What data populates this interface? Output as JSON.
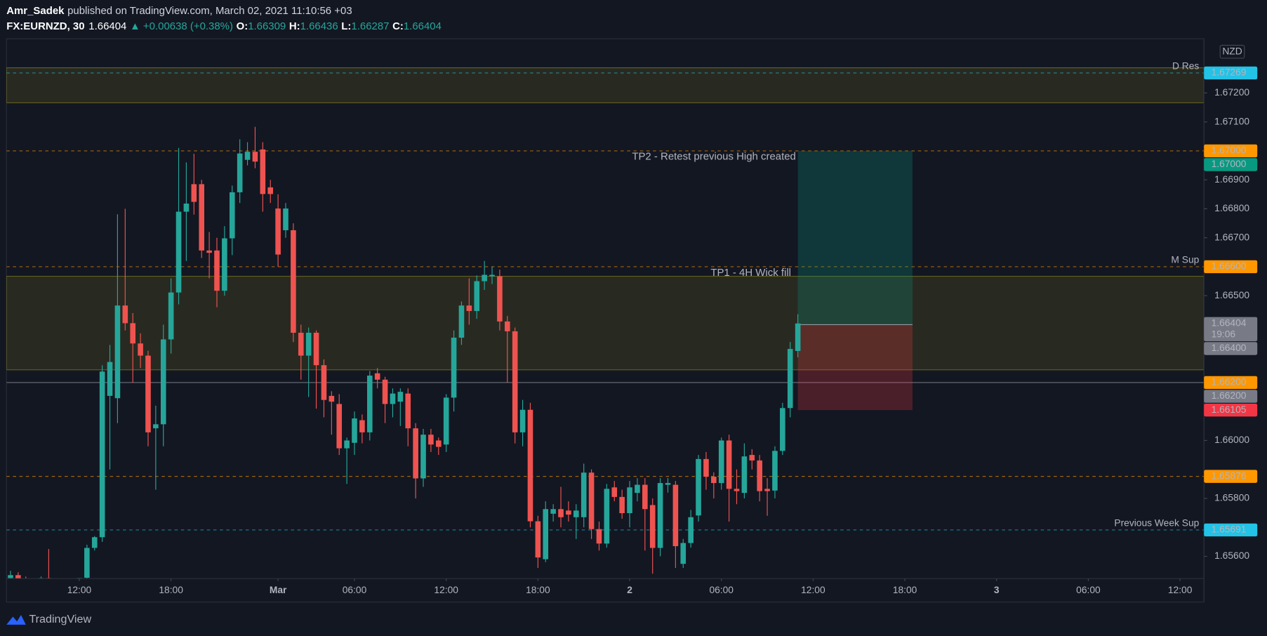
{
  "header": {
    "author": "Amr_Sadek",
    "published": "published on TradingView.com, March 02, 2021 11:10:56 +03",
    "symbol": "FX:EURNZD, 30",
    "change": "▲ +0.00638 (+0.38%)",
    "ohlc_labels": [
      "O:",
      "H:",
      "L:",
      "C:"
    ]
  },
  "chart_data": {
    "type": "candlestick",
    "currency": "NZD",
    "countdown": "19:06",
    "up_color": "#26a69a",
    "down_color": "#ef5350",
    "grid": false,
    "categories": [
      null,
      null,
      null,
      null,
      null,
      null,
      null,
      null,
      null,
      "12:00",
      null,
      null,
      null,
      null,
      null,
      null,
      null,
      null,
      null,
      null,
      null,
      "18:00",
      null,
      null,
      null,
      null,
      null,
      null,
      null,
      null,
      null,
      null,
      null,
      null,
      null,
      "Mar",
      null,
      null,
      null,
      null,
      null,
      null,
      null,
      null,
      null,
      "06:00",
      null,
      null,
      null,
      null,
      null,
      null,
      null,
      null,
      null,
      null,
      null,
      "12:00",
      null,
      null,
      null,
      null,
      null,
      null,
      null,
      null,
      null,
      null,
      null,
      "18:00",
      null,
      null,
      null,
      null,
      null,
      null,
      null,
      null,
      null,
      null,
      null,
      "2",
      null,
      null,
      null,
      null,
      null,
      null,
      null,
      null,
      null,
      null,
      null,
      "06:00",
      null,
      null,
      null,
      null,
      null,
      null,
      null,
      null,
      null,
      null,
      null,
      "12:00",
      null,
      null,
      null,
      null,
      null,
      null,
      null,
      null,
      null,
      null,
      null,
      "18:00",
      null,
      null,
      null,
      null,
      null,
      null,
      null,
      null,
      null,
      null,
      null,
      "3",
      null,
      null,
      null,
      null,
      null,
      null,
      null,
      null,
      null,
      null,
      null,
      "06:00",
      null,
      null,
      null,
      null,
      null,
      null,
      null,
      null,
      null,
      null,
      null,
      "12:00"
    ],
    "open": [
      1.65525,
      1.65535,
      1.6552,
      1.655,
      1.65505,
      1.65525,
      1.65515,
      1.6549,
      1.655,
      1.65495,
      1.65526,
      1.65629,
      1.65666,
      1.66154,
      1.66146,
      1.66466,
      1.66405,
      1.66335,
      1.66293,
      1.66042,
      1.66056,
      1.66349,
      1.66511,
      1.6679,
      1.66885,
      1.66885,
      1.66656,
      1.66656,
      1.66517,
      1.66698,
      1.66857,
      1.66969,
      1.66997,
      1.67005,
      1.66874,
      1.66801,
      1.66726,
      1.66726,
      1.66372,
      1.66293,
      1.66372,
      1.6626,
      1.66154,
      1.66126,
      1.65973,
      1.65992,
      1.6607,
      1.66028,
      1.66232,
      1.6621,
      1.66126,
      1.66134,
      1.66162,
      1.66042,
      1.65869,
      1.6602,
      1.66,
      1.65986,
      1.66148,
      1.66355,
      1.66466,
      1.66447,
      1.6655,
      1.66567,
      1.66567,
      1.66411,
      1.66377,
      1.66028,
      1.66106,
      1.65721,
      1.6559,
      1.65747,
      1.65763,
      1.65758,
      1.65735,
      1.65735,
      1.65889,
      1.65694,
      1.65644,
      1.65838,
      1.65805,
      1.65749,
      1.65819,
      1.65847,
      1.65777,
      1.65629,
      1.65847,
      1.65847,
      1.65574,
      1.65646,
      1.65741,
      1.65936,
      1.65875,
      1.65853,
      1.66,
      1.65833,
      1.65819,
      1.6595,
      1.65931,
      1.65833,
      1.65827,
      1.65964,
      1.66112,
      1.66309,
      null,
      null,
      null,
      null,
      null,
      null,
      null,
      null,
      null,
      null,
      null,
      null,
      null,
      null,
      null,
      null,
      null,
      null,
      null,
      null,
      null,
      null,
      null,
      null,
      null,
      null,
      null,
      null,
      null,
      null,
      null,
      null,
      null,
      null,
      null,
      null,
      null,
      null,
      null,
      null,
      null,
      null,
      null,
      null,
      null,
      null,
      null,
      null,
      null,
      null
    ],
    "high": [
      1.6555,
      1.65545,
      1.6553,
      1.65515,
      1.6553,
      1.65625,
      1.6552,
      1.6551,
      1.65515,
      1.6552,
      1.6564,
      1.6567,
      1.6626,
      1.6633,
      1.66781,
      1.668,
      1.6644,
      1.6637,
      1.6631,
      1.6612,
      1.664,
      1.6656,
      1.6701,
      1.6696,
      1.6699,
      1.669,
      1.6672,
      1.667,
      1.6674,
      1.6688,
      1.6704,
      1.6703,
      1.67083,
      1.6703,
      1.669,
      1.6685,
      1.6682,
      1.6675,
      1.664,
      1.6639,
      1.6638,
      1.6628,
      1.6617,
      1.6616,
      1.6601,
      1.661,
      1.6609,
      1.6624,
      1.6625,
      1.6622,
      1.6618,
      1.6618,
      1.6618,
      1.6606,
      1.6604,
      1.6604,
      1.6601,
      1.6616,
      1.6638,
      1.6648,
      1.6656,
      1.6657,
      1.6662,
      1.666,
      1.6659,
      1.6643,
      1.6639,
      1.6614,
      1.6613,
      1.6574,
      1.6579,
      1.6578,
      1.6584,
      1.6579,
      1.6578,
      1.6592,
      1.659,
      1.6572,
      1.6585,
      1.6586,
      1.6583,
      1.6586,
      1.6587,
      1.6587,
      1.658,
      1.6587,
      1.6587,
      1.6586,
      1.6566,
      1.6576,
      1.6595,
      1.6596,
      1.6589,
      1.6601,
      1.6602,
      1.659,
      1.6599,
      1.6597,
      1.6595,
      1.6587,
      1.6598,
      1.6613,
      1.6634,
      1.66436,
      null,
      null,
      null,
      null,
      null,
      null,
      null,
      null,
      null,
      null,
      null,
      null,
      null,
      null,
      null,
      null,
      null,
      null,
      null,
      null,
      null,
      null,
      null,
      null,
      null,
      null,
      null,
      null,
      null,
      null,
      null,
      null,
      null,
      null,
      null,
      null,
      null,
      null,
      null,
      null,
      null,
      null,
      null,
      null,
      null,
      null,
      null,
      null,
      null,
      null
    ],
    "low": [
      1.655,
      1.6551,
      1.6549,
      1.6548,
      1.65495,
      1.65505,
      1.6548,
      1.6547,
      1.65485,
      1.6548,
      1.6551,
      1.6562,
      1.6565,
      1.659,
      1.6606,
      1.6638,
      1.662,
      1.6625,
      1.6598,
      1.6583,
      1.6598,
      1.663,
      1.6647,
      1.6662,
      1.6678,
      1.6663,
      1.6656,
      1.6646,
      1.665,
      1.6664,
      1.6682,
      1.6695,
      1.6694,
      1.6679,
      1.6682,
      1.666,
      1.667,
      1.6634,
      1.6621,
      1.6615,
      1.6611,
      1.6608,
      1.6602,
      1.6595,
      1.6585,
      1.6595,
      1.6599,
      1.66,
      1.6618,
      1.6606,
      1.6608,
      1.6605,
      1.6598,
      1.658,
      1.6584,
      1.6596,
      1.6595,
      1.6596,
      1.661,
      1.6633,
      1.664,
      1.6642,
      1.6652,
      1.6654,
      1.6638,
      1.662,
      1.6599,
      1.6598,
      1.657,
      1.6556,
      1.6558,
      1.6572,
      1.657,
      1.6572,
      1.6566,
      1.657,
      1.6566,
      1.6562,
      1.6563,
      1.6579,
      1.6573,
      1.657,
      1.6579,
      1.6562,
      1.6554,
      1.656,
      1.6582,
      1.6556,
      1.6556,
      1.6563,
      1.6572,
      1.6583,
      1.658,
      1.6583,
      1.6572,
      1.6578,
      1.658,
      1.659,
      1.6579,
      1.6574,
      1.658,
      1.6595,
      1.6608,
      1.66287,
      null,
      null,
      null,
      null,
      null,
      null,
      null,
      null,
      null,
      null,
      null,
      null,
      null,
      null,
      null,
      null,
      null,
      null,
      null,
      null,
      null,
      null,
      null,
      null,
      null,
      null,
      null,
      null,
      null,
      null,
      null,
      null,
      null,
      null,
      null,
      null,
      null,
      null,
      null,
      null,
      null,
      null,
      null,
      null,
      null,
      null,
      null,
      null,
      null,
      null
    ],
    "close": [
      1.65535,
      1.6552,
      1.655,
      1.65505,
      1.65525,
      1.65515,
      1.6549,
      1.655,
      1.65495,
      1.65525,
      1.65629,
      1.65666,
      1.66238,
      1.66271,
      1.66466,
      1.66405,
      1.66335,
      1.66293,
      1.66028,
      1.66056,
      1.66349,
      1.66511,
      1.6679,
      1.66818,
      1.66824,
      1.66656,
      1.66648,
      1.66517,
      1.66698,
      1.66857,
      1.66991,
      1.66997,
      1.66963,
      1.66851,
      1.66851,
      1.66642,
      1.66801,
      1.66372,
      1.66293,
      1.66372,
      1.6626,
      1.6614,
      1.66134,
      1.65973,
      1.66,
      1.66076,
      1.66028,
      1.66224,
      1.6621,
      1.66126,
      1.66162,
      1.66168,
      1.66042,
      1.65869,
      1.6602,
      1.65986,
      1.65978,
      1.66148,
      1.66355,
      1.66466,
      1.66447,
      1.6655,
      1.66572,
      1.66572,
      1.66411,
      1.66377,
      1.66028,
      1.66106,
      1.65721,
      1.65596,
      1.65763,
      1.65763,
      1.65735,
      1.65744,
      1.65758,
      1.65889,
      1.65694,
      1.65644,
      1.65833,
      1.65805,
      1.65749,
      1.65838,
      1.65847,
      1.65763,
      1.65629,
      1.65853,
      1.65853,
      1.65635,
      1.65646,
      1.65735,
      1.65936,
      1.65875,
      1.65853,
      1.66,
      1.65833,
      1.65825,
      1.65945,
      1.65931,
      1.65825,
      1.65825,
      1.65964,
      1.66112,
      1.66316,
      1.66404,
      null,
      null,
      null,
      null,
      null,
      null,
      null,
      null,
      null,
      null,
      null,
      null,
      null,
      null,
      null,
      null,
      null,
      null,
      null,
      null,
      null,
      null,
      null,
      null,
      null,
      null,
      null,
      null,
      null,
      null,
      null,
      null,
      null,
      null,
      null,
      null,
      null,
      null,
      null,
      null,
      null,
      null,
      null,
      null,
      null,
      null,
      null,
      null,
      null,
      null
    ],
    "ylim": [
      1.65523,
      1.67387
    ],
    "yticks": [
      {
        "value": 1.656,
        "label": "1.65600"
      },
      {
        "value": 1.658,
        "label": "1.65800"
      },
      {
        "value": 1.66,
        "label": "1.66000"
      },
      {
        "value": 1.665,
        "label": "1.66500"
      },
      {
        "value": 1.667,
        "label": "1.66700"
      },
      {
        "value": 1.668,
        "label": "1.66800"
      },
      {
        "value": 1.669,
        "label": "1.66900"
      },
      {
        "value": 1.671,
        "label": "1.67100"
      },
      {
        "value": 1.672,
        "label": "1.67200"
      }
    ],
    "zone_color": "#7d7a1e",
    "zones": [
      {
        "from": 1.67287,
        "to": 1.67166
      },
      {
        "from": 1.66567,
        "to": 1.66244
      }
    ],
    "levels": [
      {
        "name": "D Res",
        "price": 1.67269,
        "color": "#22c3e6",
        "line": "dashed"
      },
      {
        "price": {
          "value": 1.67,
          "label": "1.67000"
        },
        "color": "#ff9800",
        "line": "dashed"
      },
      {
        "name": "M Sup",
        "price": {
          "value": 1.666,
          "label": "1.66600"
        },
        "color": "#ff9800",
        "line": "dashed"
      },
      {
        "price": {
          "value": 1.662,
          "label": "1.66200"
        },
        "color": "#ff9800",
        "line": "none"
      },
      {
        "price": {
          "value": 1.662,
          "label": "1.66200"
        },
        "color": "#787b86",
        "line": "solid"
      },
      {
        "price": 1.65876,
        "color": "#ff9800",
        "line": "dashed"
      },
      {
        "name": "Previous Week Sup",
        "price": 1.65691,
        "color": "#22c3e6",
        "line": "dashed"
      }
    ],
    "position": {
      "target": {
        "value": 1.67,
        "label": "1.67000"
      },
      "target_color": "#089981",
      "entry": {
        "value": 1.664,
        "label": "1.66400"
      },
      "entry_color": "#787b86",
      "stop": 1.66105,
      "stop_color": "#f23645"
    },
    "annotations": [
      "TP2 - Retest previous High created",
      "TP1 - 4H Wick fill"
    ]
  },
  "footer": {
    "brand": "TradingView"
  }
}
